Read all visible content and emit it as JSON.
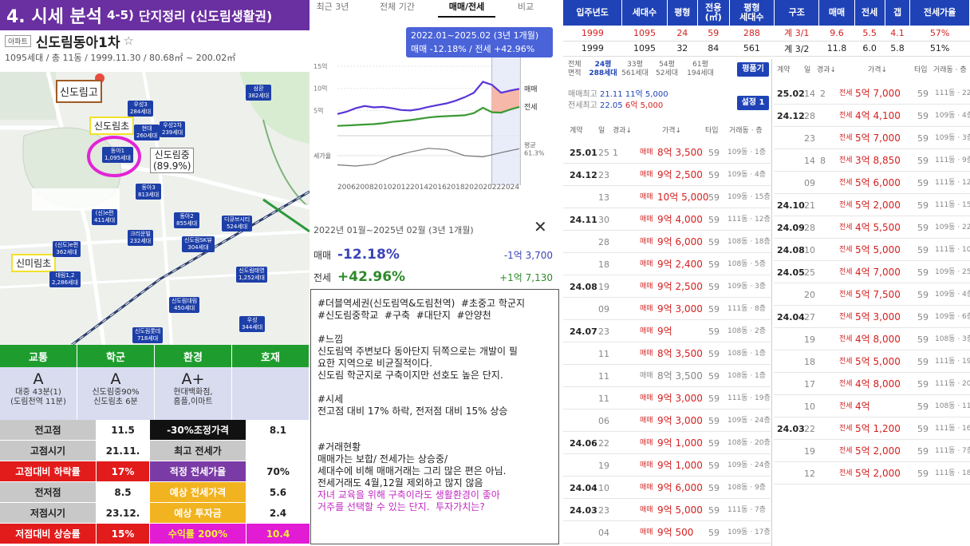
{
  "banner": {
    "main": "4. 시세 분석",
    "sub": "4-5)",
    "title": "단지정리 (신도림생활권)"
  },
  "apt": {
    "badge": "아파트",
    "name": "신도림동아1차",
    "star": "☆",
    "info": "1095세대 / 총 11동 / 1999.11.30 / 80.68㎡ ~ 200.02㎡"
  },
  "map": {
    "labels": {
      "school_high": "신도림고",
      "school_elem": "신도림초",
      "school_mid": "신도림중",
      "school_mid_pct": "(89.9%)",
      "school_mirim": "신미림초"
    },
    "markers": [
      {
        "name": "동아1",
        "units": "1,095세대"
      },
      {
        "name": "우성3",
        "units": "284세대"
      },
      {
        "name": "현대",
        "units": "260세대"
      },
      {
        "name": "우성2차",
        "units": "239세대"
      },
      {
        "name": "동아3",
        "units": "813세대"
      },
      {
        "name": "(신)e편",
        "units": "411세대"
      },
      {
        "name": "크리운빌",
        "units": "232세대"
      },
      {
        "name": "동아2",
        "units": "855세대"
      },
      {
        "name": "디큐브시티",
        "units": "524세대"
      },
      {
        "name": "(신도)e편",
        "units": "362세대"
      },
      {
        "name": "신도림SK뷰",
        "units": "304세대"
      },
      {
        "name": "대림1,2",
        "units": "2,286세대"
      },
      {
        "name": "신도림태영",
        "units": "1,252세대"
      },
      {
        "name": "신도림대림",
        "units": "450세대"
      },
      {
        "name": "우성",
        "units": "344세대"
      },
      {
        "name": "신도림롯데",
        "units": "718세대"
      },
      {
        "name": "삼환",
        "units": "382세대"
      }
    ]
  },
  "summary": {
    "headers": [
      "교통",
      "학군",
      "환경",
      "호재"
    ],
    "grades": [
      {
        "grade": "A",
        "desc1": "대중 43분(1)",
        "desc2": "(도림천역 11분)"
      },
      {
        "grade": "A",
        "desc1": "신도림중90%",
        "desc2": "신도림초 6분"
      },
      {
        "grade": "A+",
        "desc1": "현대백화점,",
        "desc2": "홈플,이마트"
      },
      {
        "grade": "",
        "desc1": "",
        "desc2": ""
      }
    ],
    "rows": [
      {
        "l": "전고점",
        "lv": "11.5",
        "r": "-30%조정가격",
        "rv": "8.1"
      },
      {
        "l": "고점시기",
        "lv": "21.11.",
        "r": "최고 전세가",
        "rv": ""
      },
      {
        "l": "고점대비 하락률",
        "lv": "17%",
        "r": "적정 전세가율",
        "rv": "70%"
      },
      {
        "l": "전저점",
        "lv": "8.5",
        "r": "예상 전세가격",
        "rv": "5.6"
      },
      {
        "l": "저점시기",
        "lv": "23.12.",
        "r": "예상 투자금",
        "rv": "2.4"
      },
      {
        "l": "저점대비 상승률",
        "lv": "15%",
        "r": "수익률 200%",
        "rv": "10.4"
      }
    ]
  },
  "period_tabs": [
    "최근 3년",
    "전체 기간",
    "매매/전세",
    "비교"
  ],
  "chart_data": {
    "type": "line",
    "x_ticks": [
      "2006",
      "2008",
      "2010",
      "2012",
      "2014",
      "2016",
      "2018",
      "2020",
      "2022",
      "2024"
    ],
    "y_ticks": [
      "15억",
      "10억",
      "5억"
    ],
    "series": [
      {
        "name": "매매",
        "color": "#5a35d6",
        "x": [
          2005,
          2006,
          2007,
          2008,
          2009,
          2010,
          2011,
          2012,
          2013,
          2014,
          2015,
          2016,
          2017,
          2018,
          2019,
          2020,
          2021,
          2022,
          2023,
          2024,
          2025
        ],
        "y": [
          4.2,
          4.7,
          5.5,
          6.0,
          5.7,
          5.8,
          5.5,
          5.1,
          5.0,
          5.3,
          5.8,
          6.2,
          6.6,
          7.2,
          8.0,
          9.0,
          11.5,
          10.8,
          9.0,
          9.5,
          9.9
        ]
      },
      {
        "name": "전세",
        "color": "#3a9a33",
        "x": [
          2005,
          2006,
          2007,
          2008,
          2009,
          2010,
          2011,
          2012,
          2013,
          2014,
          2015,
          2016,
          2017,
          2018,
          2019,
          2020,
          2021,
          2022,
          2023,
          2024,
          2025
        ],
        "y": [
          1.5,
          1.6,
          1.7,
          1.8,
          1.9,
          2.1,
          2.4,
          2.6,
          2.8,
          3.1,
          3.4,
          3.6,
          3.7,
          3.8,
          3.9,
          4.4,
          5.6,
          4.6,
          4.5,
          5.2,
          5.8
        ]
      },
      {
        "name": "세가율",
        "color": "#777777",
        "x": [
          2005,
          2007,
          2009,
          2011,
          2013,
          2015,
          2017,
          2019,
          2021,
          2023,
          2025
        ],
        "y": [
          35,
          33,
          36,
          48,
          56,
          62,
          60,
          50,
          48,
          55,
          61.3
        ]
      }
    ],
    "ratio_label": "세가율",
    "ratio_end": "평균\n61.3%",
    "tooltip": {
      "period": "2022.01~2025.02 (3년 1개월)",
      "text": "매매 -12.18%  /  전세 +42.96%"
    },
    "y_range": [
      0,
      17
    ]
  },
  "compare": {
    "period": "2022년 01월~2025년 02월 (3년 1개월)",
    "close": "✕",
    "sale": {
      "label": "매매",
      "pct": "-12.18%",
      "amount": "-1억 3,700"
    },
    "jeonse": {
      "label": "전세",
      "pct": "+42.96%",
      "amount": "+1억 7,130"
    }
  },
  "memo": {
    "text": "#더블역세권(신도림역&도림천역)  #초중고 학군지\n#신도림중학교  #구축  #대단지  #안양천\n\n#느낌\n신도림역 주변보다 동아단지 뒤쪽으로는 개발이 필\n요한 지역으로 비균질적이다.\n신도림 학군지로 구축이지만 선호도 높은 단지.\n\n#시세\n전고점 대비 17% 하락, 전저점 대비 15% 상승\n\n\n#거래현황\n매매가는 보합/ 전세가는 상승중/\n세대수에 비해 매매거래는 그리 많은 편은 아님.\n전세거래도 4월,12월 제외하고 많지 않음\n",
    "highlight": "자녀 교육을 위해 구축이라도 생활환경이 좋아\n거주를 선택할 수 있는 단지.  투자가치는?"
  },
  "ptable": {
    "headers": [
      "입주년도",
      "세대수",
      "평형",
      "전용\n(㎡)",
      "평형\n세대수",
      "구조",
      "매매",
      "전세",
      "갭",
      "전세가율"
    ],
    "rows": [
      [
        "1999",
        "1095",
        "24",
        "59",
        "288",
        "계 3/1",
        "9.6",
        "5.5",
        "4.1",
        "57%"
      ],
      [
        "1999",
        "1095",
        "32",
        "84",
        "561",
        "계 3/2",
        "11.8",
        "6.0",
        "5.8",
        "51%"
      ]
    ]
  },
  "size_tabs": {
    "label1": "전체",
    "label2": "면적",
    "items": [
      {
        "p": "24평",
        "u": "288세대"
      },
      {
        "p": "33평",
        "u": "561세대"
      },
      {
        "p": "54평",
        "u": "52세대"
      },
      {
        "p": "61평",
        "u": "194세대"
      }
    ],
    "btn_compare": "평품기",
    "btn_setting": "설정 1"
  },
  "highs": {
    "sale_label": "매매최고",
    "sale_date": "21.11",
    "sale_price": "11억 5,000",
    "jeonse_label": "전세최고",
    "jeonse_date": "22.05",
    "jeonse_price": "6억 5,000"
  },
  "tx_headers": {
    "contract": "계약",
    "day": "일",
    "elapsed": "경과↓",
    "price": "가격↓",
    "type": "타입",
    "floor": "거래동 · 층"
  },
  "tx_left": [
    {
      "ym": "25.01",
      "d": "25",
      "e": "1",
      "k": "매매",
      "p": "8억 3,500",
      "t": "59",
      "f": "109동 · 1층"
    },
    {
      "ym": "24.12",
      "d": "23",
      "e": "",
      "k": "매매",
      "p": "9억 2,500",
      "t": "59",
      "f": "109동 · 4층"
    },
    {
      "ym": "",
      "d": "13",
      "e": "",
      "k": "매매",
      "p": "10억 5,000",
      "t": "59",
      "f": "109동 · 15층"
    },
    {
      "ym": "24.11",
      "d": "30",
      "e": "",
      "k": "매매",
      "p": "9억 4,000",
      "t": "59",
      "f": "111동 · 12층"
    },
    {
      "ym": "",
      "d": "28",
      "e": "",
      "k": "매매",
      "p": "9억 6,000",
      "t": "59",
      "f": "108동 · 18층"
    },
    {
      "ym": "",
      "d": "18",
      "e": "",
      "k": "매매",
      "p": "9억 2,400",
      "t": "59",
      "f": "108동 · 5층"
    },
    {
      "ym": "24.08",
      "d": "19",
      "e": "",
      "k": "매매",
      "p": "9억 2,500",
      "t": "59",
      "f": "109동 · 3층"
    },
    {
      "ym": "",
      "d": "09",
      "e": "",
      "k": "매매",
      "p": "9억 3,000",
      "t": "59",
      "f": "111동 · 8층"
    },
    {
      "ym": "24.07",
      "d": "23",
      "e": "",
      "k": "매매",
      "p": "9억",
      "t": "59",
      "f": "108동 · 2층"
    },
    {
      "ym": "",
      "d": "11",
      "e": "",
      "k": "매매",
      "p": "8억 3,500",
      "t": "59",
      "f": "108동 · 1층"
    },
    {
      "ym": "",
      "d": "11",
      "e": "",
      "k": "매매",
      "p": "8억 3,500",
      "t": "59",
      "f": "108동 · 1층",
      "gray": true
    },
    {
      "ym": "",
      "d": "11",
      "e": "",
      "k": "매매",
      "p": "9억 3,000",
      "t": "59",
      "f": "111동 · 19층"
    },
    {
      "ym": "",
      "d": "06",
      "e": "",
      "k": "매매",
      "p": "9억 3,000",
      "t": "59",
      "f": "109동 · 24층"
    },
    {
      "ym": "24.06",
      "d": "22",
      "e": "",
      "k": "매매",
      "p": "9억 1,000",
      "t": "59",
      "f": "108동 · 20층"
    },
    {
      "ym": "",
      "d": "19",
      "e": "",
      "k": "매매",
      "p": "9억 1,000",
      "t": "59",
      "f": "109동 · 24층"
    },
    {
      "ym": "24.04",
      "d": "10",
      "e": "",
      "k": "매매",
      "p": "9억 6,000",
      "t": "59",
      "f": "108동 · 9층"
    },
    {
      "ym": "24.03",
      "d": "23",
      "e": "",
      "k": "매매",
      "p": "9억 5,000",
      "t": "59",
      "f": "111동 · 7층"
    },
    {
      "ym": "",
      "d": "04",
      "e": "",
      "k": "매매",
      "p": "9억 500",
      "t": "59",
      "f": "109동 · 17층"
    }
  ],
  "tx_right": [
    {
      "ym": "25.02",
      "d": "14",
      "e": "2",
      "k": "전세",
      "p": "5억 7,000",
      "t": "59",
      "f": "111동 · 22층"
    },
    {
      "ym": "24.12",
      "d": "28",
      "e": "",
      "k": "전세",
      "p": "4억 4,100",
      "t": "59",
      "f": "109동 · 4층"
    },
    {
      "ym": "",
      "d": "23",
      "e": "",
      "k": "전세",
      "p": "5억 7,000",
      "t": "59",
      "f": "109동 · 3층"
    },
    {
      "ym": "",
      "d": "14",
      "e": "8",
      "k": "전세",
      "p": "3억 8,850",
      "t": "59",
      "f": "111동 · 9층"
    },
    {
      "ym": "",
      "d": "09",
      "e": "",
      "k": "전세",
      "p": "5억 6,000",
      "t": "59",
      "f": "111동 · 12층"
    },
    {
      "ym": "24.10",
      "d": "21",
      "e": "",
      "k": "전세",
      "p": "5억 2,000",
      "t": "59",
      "f": "111동 · 15층"
    },
    {
      "ym": "24.09",
      "d": "28",
      "e": "",
      "k": "전세",
      "p": "4억 5,500",
      "t": "59",
      "f": "109동 · 22층"
    },
    {
      "ym": "24.08",
      "d": "10",
      "e": "",
      "k": "전세",
      "p": "5억 5,000",
      "t": "59",
      "f": "111동 · 10층"
    },
    {
      "ym": "24.05",
      "d": "25",
      "e": "",
      "k": "전세",
      "p": "4억 7,000",
      "t": "59",
      "f": "109동 · 25층"
    },
    {
      "ym": "",
      "d": "20",
      "e": "",
      "k": "전세",
      "p": "5억 7,500",
      "t": "59",
      "f": "109동 · 4층"
    },
    {
      "ym": "24.04",
      "d": "27",
      "e": "",
      "k": "전세",
      "p": "5억 3,000",
      "t": "59",
      "f": "109동 · 6층"
    },
    {
      "ym": "",
      "d": "19",
      "e": "",
      "k": "전세",
      "p": "4억 8,000",
      "t": "59",
      "f": "108동 · 3층"
    },
    {
      "ym": "",
      "d": "18",
      "e": "",
      "k": "전세",
      "p": "5억 5,000",
      "t": "59",
      "f": "111동 · 19층"
    },
    {
      "ym": "",
      "d": "17",
      "e": "",
      "k": "전세",
      "p": "4억 8,000",
      "t": "59",
      "f": "111동 · 20층"
    },
    {
      "ym": "",
      "d": "10",
      "e": "",
      "k": "전세",
      "p": "4억",
      "t": "59",
      "f": "108동 · 11층"
    },
    {
      "ym": "24.03",
      "d": "22",
      "e": "",
      "k": "전세",
      "p": "5억 1,200",
      "t": "59",
      "f": "111동 · 16층"
    },
    {
      "ym": "",
      "d": "19",
      "e": "",
      "k": "전세",
      "p": "5억 2,000",
      "t": "59",
      "f": "111동 · 7층"
    },
    {
      "ym": "",
      "d": "12",
      "e": "",
      "k": "전세",
      "p": "5억 2,000",
      "t": "59",
      "f": "111동 · 18층"
    }
  ]
}
